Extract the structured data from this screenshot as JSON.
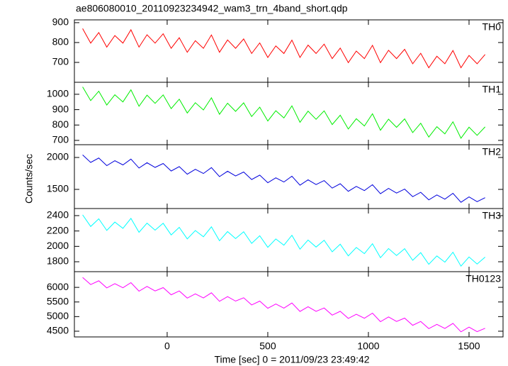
{
  "chart_data": [
    {
      "type": "line",
      "title": "ae806080010_20110923234942_wam3_trn_4band_short.qdp",
      "x": [
        -420,
        -380,
        -340,
        -300,
        -260,
        -220,
        -180,
        -140,
        -100,
        -60,
        -20,
        20,
        60,
        100,
        140,
        180,
        220,
        260,
        300,
        340,
        380,
        420,
        460,
        500,
        540,
        580,
        620,
        660,
        700,
        740,
        780,
        820,
        860,
        900,
        940,
        980,
        1020,
        1060,
        1100,
        1140,
        1180,
        1220,
        1260,
        1300,
        1340,
        1380,
        1420,
        1460,
        1500,
        1540,
        1580
      ],
      "series": [
        {
          "name": "TH0",
          "color": "#ff0000",
          "values": [
            870,
            797,
            850,
            777,
            835,
            797,
            864,
            777,
            839,
            797,
            844,
            771,
            824,
            751,
            809,
            771,
            838,
            751,
            813,
            771,
            818,
            745,
            798,
            725,
            783,
            745,
            812,
            725,
            787,
            745,
            792,
            719,
            772,
            699,
            757,
            719,
            786,
            699,
            761,
            719,
            766,
            693,
            746,
            673,
            731,
            693,
            760,
            673,
            735,
            693,
            740
          ]
        }
      ],
      "xlim": [
        -461,
        1669
      ],
      "ylim": [
        600,
        914
      ],
      "yticks": [
        700,
        800,
        900
      ]
    },
    {
      "type": "line",
      "x": [
        -420,
        -380,
        -340,
        -300,
        -260,
        -220,
        -180,
        -140,
        -100,
        -60,
        -20,
        20,
        60,
        100,
        140,
        180,
        220,
        260,
        300,
        340,
        380,
        420,
        460,
        500,
        540,
        580,
        620,
        660,
        700,
        740,
        780,
        820,
        860,
        900,
        940,
        980,
        1020,
        1060,
        1100,
        1140,
        1180,
        1220,
        1260,
        1300,
        1340,
        1380,
        1420,
        1460,
        1500,
        1540,
        1580
      ],
      "series": [
        {
          "name": "TH1",
          "color": "#00ee00",
          "values": [
            1048,
            959,
            1020,
            930,
            997,
            950,
            1029,
            922,
            994,
            941,
            996,
            907,
            968,
            878,
            945,
            898,
            977,
            870,
            942,
            889,
            944,
            855,
            916,
            826,
            893,
            846,
            925,
            818,
            890,
            837,
            892,
            803,
            864,
            774,
            841,
            794,
            873,
            766,
            838,
            785,
            840,
            751,
            812,
            722,
            789,
            742,
            821,
            714,
            786,
            733,
            788
          ]
        }
      ],
      "xlim": [
        -461,
        1669
      ],
      "ylim": [
        672,
        1078
      ],
      "yticks": [
        700,
        800,
        900,
        1000
      ]
    },
    {
      "type": "line",
      "ylabel": "Counts/sec",
      "x": [
        -420,
        -380,
        -340,
        -300,
        -260,
        -220,
        -180,
        -140,
        -100,
        -60,
        -20,
        20,
        60,
        100,
        140,
        180,
        220,
        260,
        300,
        340,
        380,
        420,
        460,
        500,
        540,
        580,
        620,
        660,
        700,
        740,
        780,
        820,
        860,
        900,
        940,
        980,
        1020,
        1060,
        1100,
        1140,
        1180,
        1220,
        1260,
        1300,
        1340,
        1380,
        1420,
        1460,
        1500,
        1540,
        1580
      ],
      "series": [
        {
          "name": "TH2",
          "color": "#0000dd",
          "values": [
            2040,
            1922,
            1991,
            1872,
            1949,
            1883,
            1975,
            1834,
            1918,
            1844,
            1906,
            1788,
            1857,
            1738,
            1815,
            1749,
            1841,
            1700,
            1784,
            1710,
            1772,
            1654,
            1723,
            1604,
            1681,
            1615,
            1707,
            1566,
            1650,
            1576,
            1638,
            1520,
            1589,
            1470,
            1547,
            1481,
            1573,
            1432,
            1516,
            1442,
            1504,
            1386,
            1455,
            1336,
            1413,
            1347,
            1439,
            1298,
            1382,
            1308,
            1370
          ]
        }
      ],
      "xlim": [
        -461,
        1669
      ],
      "ylim": [
        1200,
        2200
      ],
      "yticks": [
        1500,
        2000
      ]
    },
    {
      "type": "line",
      "x": [
        -420,
        -380,
        -340,
        -300,
        -260,
        -220,
        -180,
        -140,
        -100,
        -60,
        -20,
        20,
        60,
        100,
        140,
        180,
        220,
        260,
        300,
        340,
        380,
        420,
        460,
        500,
        540,
        580,
        620,
        660,
        700,
        740,
        780,
        820,
        860,
        900,
        940,
        980,
        1020,
        1060,
        1100,
        1140,
        1180,
        1220,
        1260,
        1300,
        1340,
        1380,
        1420,
        1460,
        1500,
        1540,
        1580
      ],
      "series": [
        {
          "name": "TH3",
          "color": "#00ffff",
          "values": [
            2410,
            2259,
            2358,
            2207,
            2316,
            2235,
            2364,
            2183,
            2302,
            2211,
            2300,
            2149,
            2248,
            2097,
            2206,
            2125,
            2254,
            2073,
            2192,
            2101,
            2190,
            2039,
            2138,
            1987,
            2096,
            2015,
            2144,
            1963,
            2082,
            1991,
            2080,
            1929,
            2028,
            1877,
            1986,
            1905,
            2034,
            1853,
            1972,
            1881,
            1970,
            1819,
            1918,
            1767,
            1876,
            1795,
            1924,
            1743,
            1862,
            1771,
            1860
          ]
        }
      ],
      "xlim": [
        -461,
        1669
      ],
      "ylim": [
        1671,
        2492
      ],
      "yticks": [
        1800,
        2000,
        2200,
        2400
      ]
    },
    {
      "type": "line",
      "xlabel": "Time [sec] 0 = 2011/09/23 23:49:42",
      "x": [
        -420,
        -380,
        -340,
        -300,
        -260,
        -220,
        -180,
        -140,
        -100,
        -60,
        -20,
        20,
        60,
        100,
        140,
        180,
        220,
        260,
        300,
        340,
        380,
        420,
        460,
        500,
        540,
        580,
        620,
        660,
        700,
        740,
        780,
        820,
        860,
        900,
        940,
        980,
        1020,
        1060,
        1100,
        1140,
        1180,
        1220,
        1260,
        1300,
        1340,
        1380,
        1420,
        1460,
        1500,
        1540,
        1580
      ],
      "series": [
        {
          "name": "TH0123",
          "color": "#ff00ff",
          "values": [
            6340,
            6095,
            6225,
            5981,
            6126,
            5986,
            6161,
            5871,
            6032,
            5877,
            5992,
            5747,
            5877,
            5633,
            5778,
            5638,
            5813,
            5523,
            5684,
            5529,
            5644,
            5399,
            5529,
            5285,
            5430,
            5290,
            5465,
            5175,
            5336,
            5181,
            5296,
            5051,
            5181,
            4937,
            5082,
            4942,
            5117,
            4827,
            4988,
            4833,
            4948,
            4703,
            4833,
            4589,
            4734,
            4594,
            4769,
            4479,
            4640,
            4485,
            4600
          ]
        }
      ],
      "xlim": [
        -461,
        1669
      ],
      "ylim": [
        4305,
        6537
      ],
      "yticks": [
        4500,
        5000,
        5500,
        6000
      ],
      "xticks": [
        0,
        500,
        1000,
        1500
      ]
    }
  ]
}
